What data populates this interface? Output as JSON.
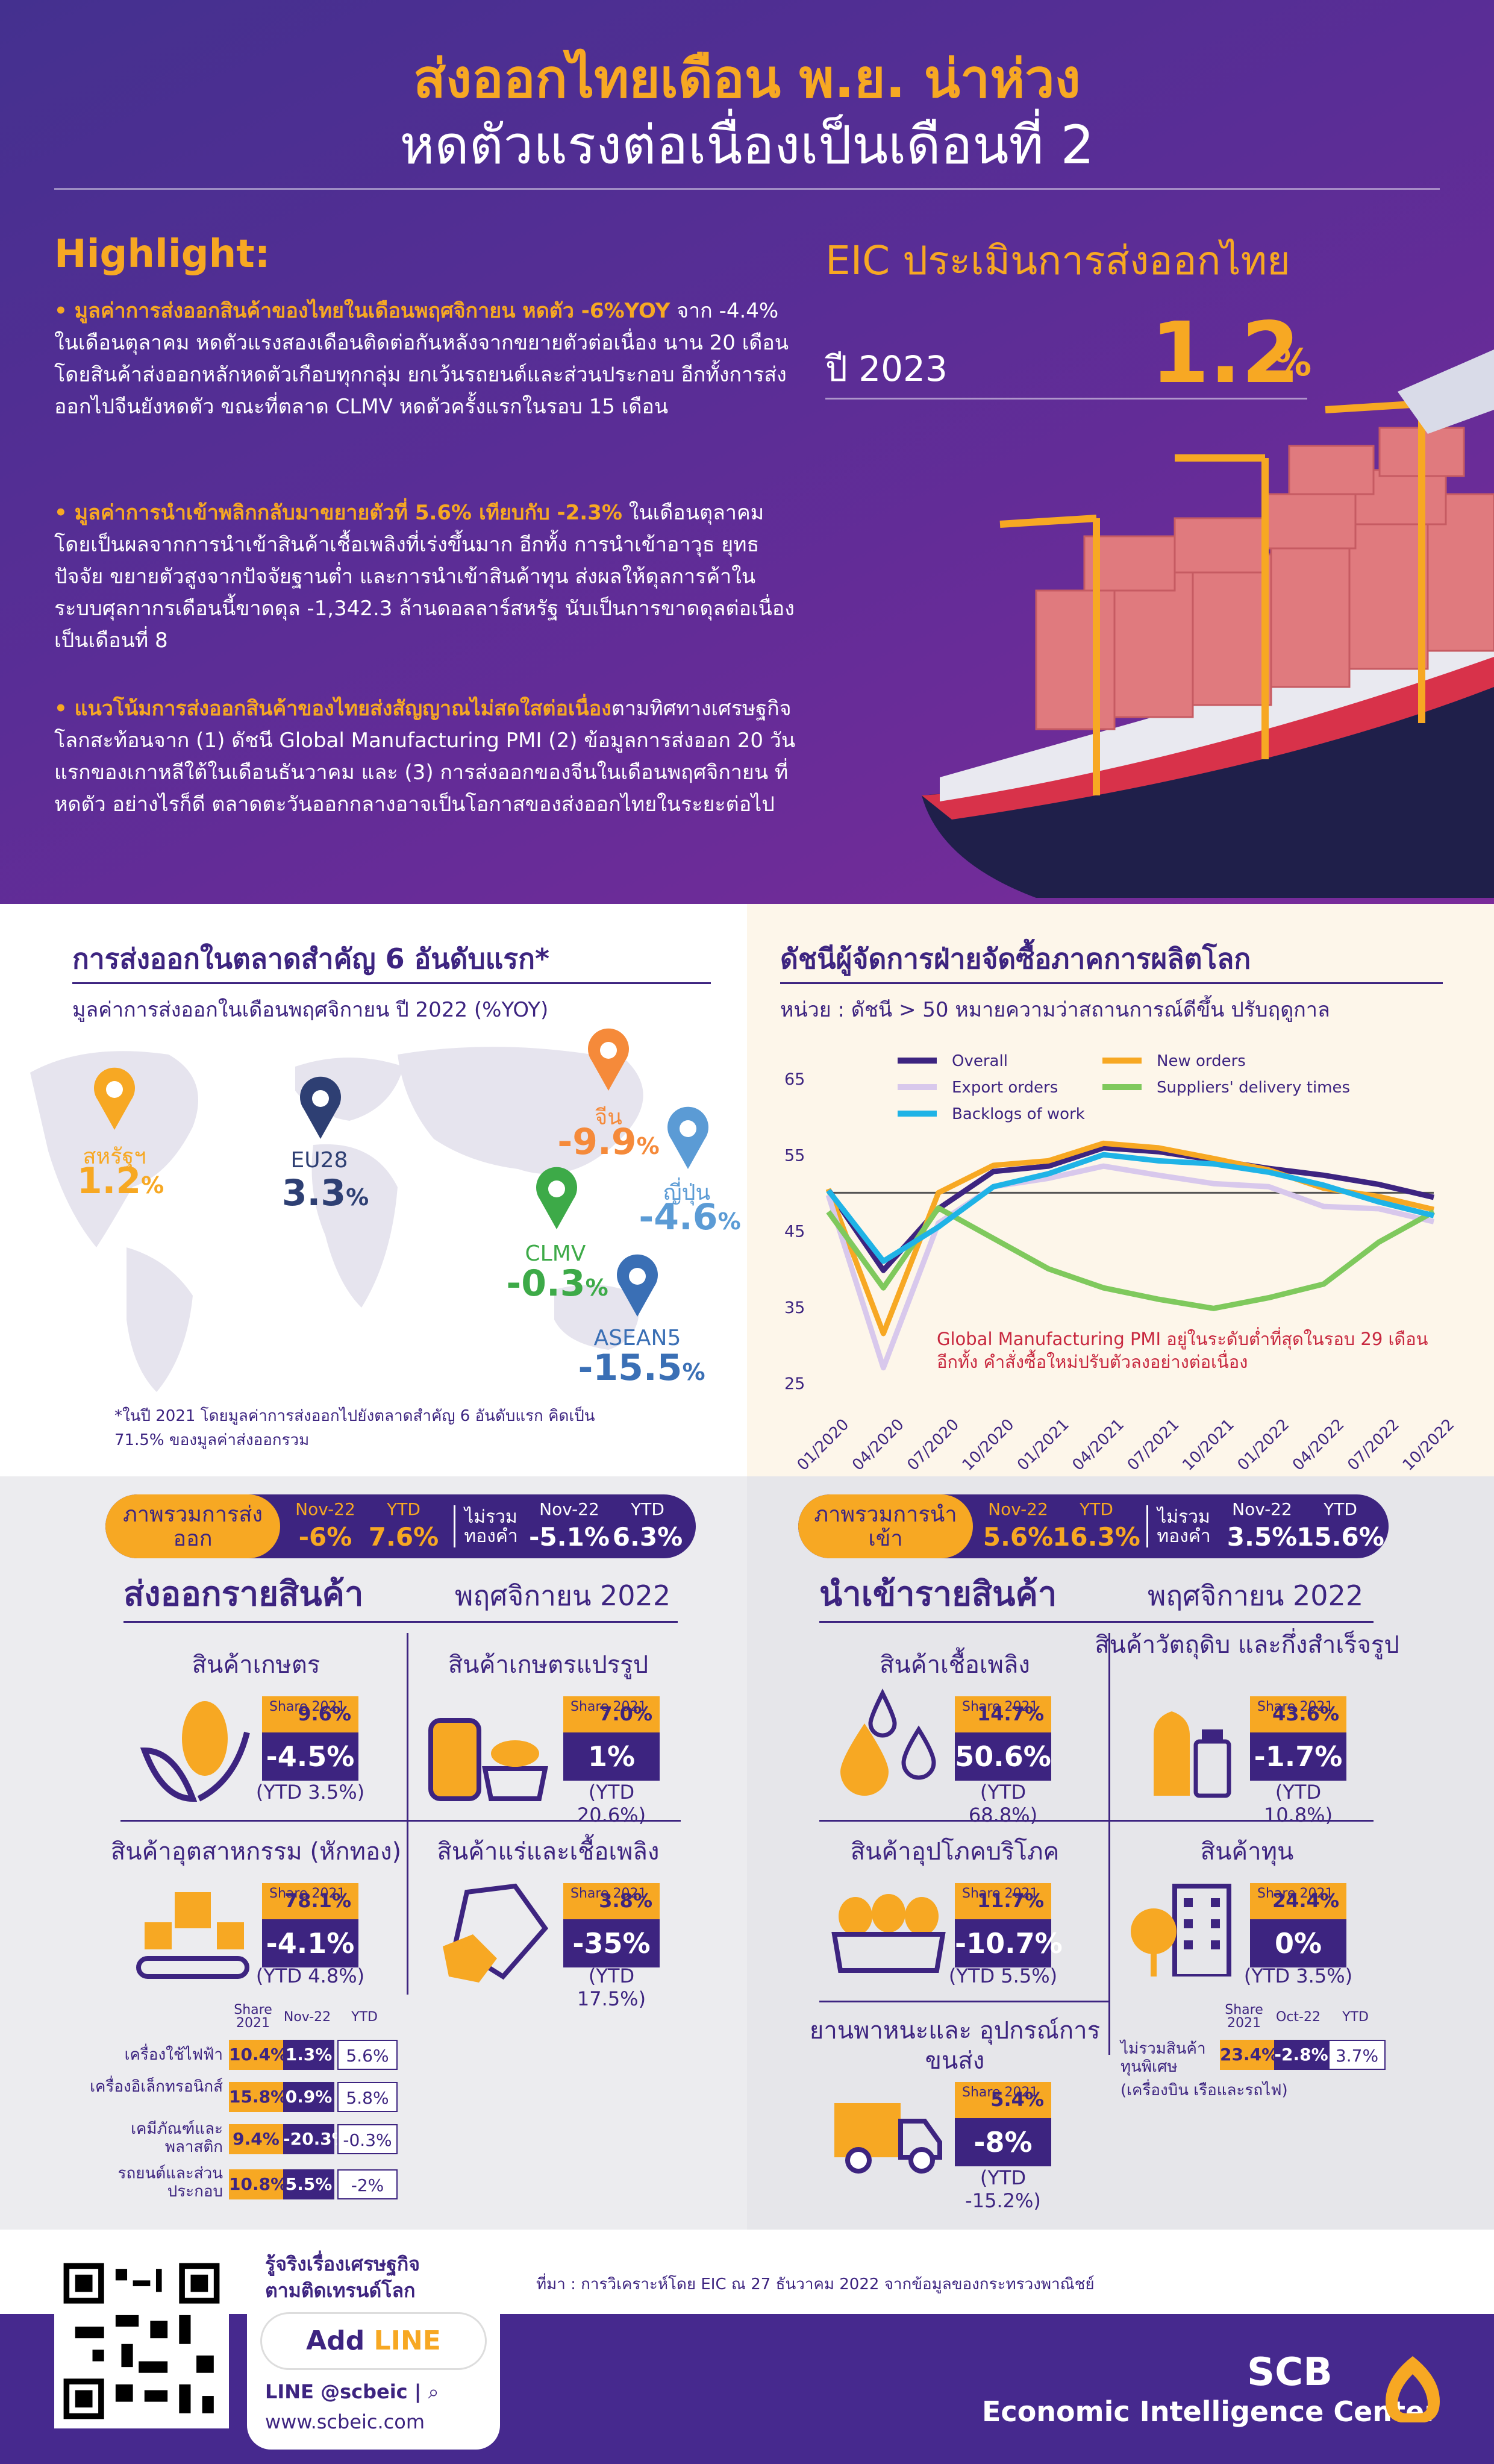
{
  "header": {
    "title_line1": "ส่งออกไทยเดือน พ.ย. น่าห่วง",
    "title_line2": "หดตัวแรงต่อเนื่องเป็นเดือนที่ 2"
  },
  "highlight": {
    "title": "Highlight:",
    "items": [
      {
        "lead": "มูลค่าการส่งออกสินค้าของไทยในเดือนพฤศจิกายน หดตัว -6%YOY",
        "body": "จาก -4.4% ในเดือนตุลาคม หดตัวแรงสองเดือนติดต่อกันหลังจากขยายตัวต่อเนื่อง นาน 20 เดือน โดยสินค้าส่งออกหลักหดตัวเกือบทุกกลุ่ม ยกเว้นรถยนต์และส่วนประกอบ อีกทั้งการส่งออกไปจีนยังหดตัว ขณะที่ตลาด CLMV หดตัวครั้งแรกในรอบ 15 เดือน"
      },
      {
        "lead": "มูลค่าการนำเข้าพลิกกลับมาขยายตัวที่ 5.6% เทียบกับ -2.3%",
        "body": "ในเดือนตุลาคม โดยเป็นผลจากการนำเข้าสินค้าเชื้อเพลิงที่เร่งขึ้นมาก อีกทั้ง การนำเข้าอาวุธ ยุทธปัจจัย ขยายตัวสูงจากปัจจัยฐานต่ำ และการนำเข้าสินค้าทุน ส่งผลให้ดุลการค้าในระบบศุลกากรเดือนนี้ขาดดุล -1,342.3 ล้านดอลลาร์สหรัฐ นับเป็นการขาดดุลต่อเนื่องเป็นเดือนที่ 8"
      },
      {
        "lead": "แนวโน้มการส่งออกสินค้าของไทยส่งสัญญาณไม่สดใสต่อเนื่อง",
        "body": "ตามทิศทางเศรษฐกิจโลกสะท้อนจาก (1) ดัชนี Global Manufacturing PMI (2) ข้อมูลการส่งออก 20 วันแรกของเกาหลีใต้ในเดือนธันวาคม และ (3) การส่งออกของจีนในเดือนพฤศจิกายน ที่หดตัว อย่างไรก็ดี ตลาดตะวันออกกลางอาจเป็นโอกาสของส่งออกไทยในระยะต่อไป"
      }
    ]
  },
  "eic": {
    "title": "EIC ประเมินการส่งออกไทย",
    "year": "ปี 2023",
    "value": "1.2",
    "unit": "%"
  },
  "export_markets": {
    "title": "การส่งออกในตลาดสำคัญ 6 อันดับแรก*",
    "subtitle": "มูลค่าการส่งออกในเดือนพฤศจิกายน ปี 2022 (%YOY)",
    "markets": [
      {
        "name": "สหรัฐฯ",
        "value": "1.2",
        "color": "#f7a823"
      },
      {
        "name": "EU28",
        "value": "3.3",
        "color": "#2e3f73"
      },
      {
        "name": "จีน",
        "value": "-9.9",
        "color": "#f58a3a"
      },
      {
        "name": "ญี่ปุ่น",
        "value": "-4.6",
        "color": "#5b9bd5"
      },
      {
        "name": "CLMV",
        "value": "-0.3",
        "color": "#3daa48"
      },
      {
        "name": "ASEAN5",
        "value": "-15.5",
        "color": "#3a6fb5"
      }
    ],
    "unit": "%",
    "note": "*ในปี 2021 โดยมูลค่าการส่งออกไปยังตลาดสำคัญ 6 อันดับแรก คิดเป็น 71.5% ของมูลค่าส่งออกรวม"
  },
  "pmi": {
    "title": "ดัชนีผู้จัดการฝ่ายจัดซื้อภาคการผลิตโลก",
    "subtitle": "หน่วย : ดัชนี > 50 หมายความว่าสถานการณ์ดีขึ้น ปรับฤดูกาล",
    "annotation_line1": "Global Manufacturing PMI อยู่ในระดับต่ำที่สุดในรอบ 29 เดือน",
    "annotation_line2": "อีกทั้ง คำสั่งซื้อใหม่ปรับตัวลงอย่างต่อเนื่อง"
  },
  "chart_data": {
    "type": "line",
    "ylim": [
      25,
      65
    ],
    "yticks": [
      25,
      35,
      45,
      55,
      65
    ],
    "reference_line": 50,
    "x": [
      "01/2020",
      "04/2020",
      "07/2020",
      "10/2020",
      "01/2021",
      "04/2021",
      "07/2021",
      "10/2021",
      "01/2022",
      "04/2022",
      "07/2022",
      "10/2022"
    ],
    "legend_position": "top",
    "series": [
      {
        "name": "Overall",
        "color": "#3d2480",
        "values": [
          50.4,
          39.8,
          47.9,
          52.8,
          53.5,
          55.9,
          55.4,
          54.3,
          53.2,
          52.3,
          51.1,
          49.4
        ]
      },
      {
        "name": "New orders",
        "color": "#f7a823",
        "values": [
          50.5,
          31.5,
          50.0,
          53.6,
          54.2,
          56.5,
          55.9,
          54.5,
          53.0,
          50.6,
          49.5,
          47.8
        ]
      },
      {
        "name": "Export orders",
        "color": "#d8c8ec",
        "values": [
          49.7,
          27.0,
          46.0,
          50.8,
          51.9,
          53.5,
          52.3,
          51.2,
          50.8,
          48.2,
          47.9,
          46.2
        ]
      },
      {
        "name": "Suppliers' delivery times",
        "color": "#7fc95d",
        "values": [
          47.5,
          37.5,
          48.0,
          44.0,
          40.0,
          37.5,
          36.0,
          34.8,
          36.2,
          38.0,
          43.5,
          47.5
        ]
      },
      {
        "name": "Backlogs of work",
        "color": "#1fb3e6",
        "values": [
          50.3,
          41.0,
          45.5,
          50.8,
          52.5,
          55.0,
          54.2,
          53.8,
          52.7,
          51.0,
          48.8,
          47.0
        ]
      }
    ]
  },
  "exports": {
    "total_label": "ภาพรวมการส่งออก",
    "nov_label": "Nov-22",
    "ytd_label": "YTD",
    "nov": "-6%",
    "ytd": "7.6%",
    "excl_label": "ไม่รวมทองคำ",
    "excl_nov": "-5.1%",
    "excl_ytd": "6.3%",
    "title": "ส่งออกรายสินค้า",
    "month": "พฤศจิกายน 2022",
    "share_label": "Share 2021",
    "cats": [
      {
        "name": "สินค้าเกษตร",
        "share": "9.6%",
        "chg": "-4.5%",
        "ytd": "(YTD 3.5%)"
      },
      {
        "name": "สินค้าเกษตรแปรรูป",
        "share": "7.0%",
        "chg": "1%",
        "ytd": "(YTD 20.6%)"
      },
      {
        "name": "สินค้าอุตสาหกรรม (หักทอง)",
        "share": "78.1%",
        "chg": "-4.1%",
        "ytd": "(YTD 4.8%)"
      },
      {
        "name": "สินค้าแร่และเชื้อเพลิง",
        "share": "3.8%",
        "chg": "-35%",
        "ytd": "(YTD 17.5%)"
      }
    ],
    "table_headers": [
      "Share 2021",
      "Nov-22",
      "YTD"
    ],
    "table": [
      {
        "name": "เครื่องใช้ไฟฟ้า",
        "share": "10.4%",
        "nov": "1.3%",
        "ytd": "5.6%"
      },
      {
        "name": "เครื่องอิเล็กทรอนิกส์",
        "share": "15.8%",
        "nov": "0.9%",
        "ytd": "5.8%"
      },
      {
        "name": "เคมีภัณฑ์และพลาสติก",
        "share": "9.4%",
        "nov": "-20.3%",
        "ytd": "-0.3%"
      },
      {
        "name": "รถยนต์และส่วนประกอบ",
        "share": "10.8%",
        "nov": "5.5%",
        "ytd": "-2%"
      }
    ]
  },
  "imports": {
    "total_label": "ภาพรวมการนำเข้า",
    "nov_label": "Nov-22",
    "ytd_label": "YTD",
    "nov": "5.6%",
    "ytd": "16.3%",
    "excl_label": "ไม่รวมทองคำ",
    "excl_nov": "3.5%",
    "excl_ytd": "15.6%",
    "title": "นำเข้ารายสินค้า",
    "month": "พฤศจิกายน 2022",
    "share_label": "Share 2021",
    "cats": [
      {
        "name": "สินค้าเชื้อเพลิง",
        "share": "14.7%",
        "chg": "50.6%",
        "ytd": "(YTD 68.8%)"
      },
      {
        "name": "สินค้าวัตถุดิบ และกึ่งสำเร็จรูป",
        "share": "43.6%",
        "chg": "-1.7%",
        "ytd": "(YTD 10.8%)"
      },
      {
        "name": "สินค้าอุปโภคบริโภค",
        "share": "11.7%",
        "chg": "-10.7%",
        "ytd": "(YTD 5.5%)"
      },
      {
        "name": "สินค้าทุน",
        "share": "24.4%",
        "chg": "0%",
        "ytd": "(YTD 3.5%)"
      },
      {
        "name": "ยานพาหนะและ อุปกรณ์การขนส่ง",
        "share": "5.4%",
        "chg": "-8%",
        "ytd": "(YTD -15.2%)"
      }
    ],
    "special": {
      "headers": [
        "Share 2021",
        "Oct-22",
        "YTD"
      ],
      "name": "ไม่รวมสินค้าทุนพิเศษ",
      "note": "(เครื่องบิน เรือและรถไฟ)",
      "share": "23.4%",
      "oct": "-2.8%",
      "ytd": "3.7%"
    }
  },
  "footer": {
    "cta_line1": "รู้จริงเรื่องเศรษฐกิจ",
    "cta_line2": "ตามติดเทรนด์โลก",
    "add": "Add",
    "line": "LINE",
    "line_id": "LINE @scbeic  |",
    "website": "www.scbeic.com",
    "source": "ที่มา : การวิเคราะห์โดย EIC ณ 27 ธันวาคม 2022 จากข้อมูลของกระทรวงพาณิชย์",
    "brand1": "SCB",
    "brand2": "Economic Intelligence Center"
  }
}
